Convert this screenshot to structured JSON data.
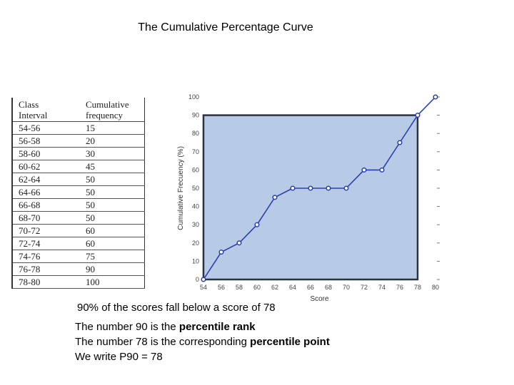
{
  "page_title": "The Cumulative Percentage Curve",
  "table": {
    "header": [
      "Class\nInterval",
      "Cumulative\nfrequency"
    ],
    "rows": [
      [
        "54-56",
        "15"
      ],
      [
        "56-58",
        "20"
      ],
      [
        "58-60",
        "30"
      ],
      [
        "60-62",
        "45"
      ],
      [
        "62-64",
        "50"
      ],
      [
        "64-66",
        "50"
      ],
      [
        "66-68",
        "50"
      ],
      [
        "68-70",
        "50"
      ],
      [
        "70-72",
        "60"
      ],
      [
        "72-74",
        "60"
      ],
      [
        "74-76",
        "75"
      ],
      [
        "76-78",
        "90"
      ],
      [
        "78-80",
        "100"
      ]
    ]
  },
  "chart_data": {
    "type": "line",
    "x": [
      54,
      56,
      58,
      60,
      62,
      64,
      66,
      68,
      70,
      72,
      74,
      76,
      78,
      80
    ],
    "series": [
      {
        "values": [
          0,
          15,
          20,
          30,
          45,
          50,
          50,
          50,
          50,
          60,
          60,
          75,
          90,
          100
        ]
      }
    ],
    "xlabel": "Score",
    "ylabel": "Cumulative Frecuency (%)",
    "xlim": [
      54,
      80
    ],
    "ylim": [
      0,
      100
    ],
    "xticks": [
      54,
      56,
      58,
      60,
      62,
      64,
      66,
      68,
      70,
      72,
      74,
      76,
      78,
      80
    ],
    "yticks": [
      0,
      10,
      20,
      30,
      40,
      50,
      60,
      70,
      80,
      90,
      100
    ],
    "highlight_region": {
      "x": [
        54,
        78
      ],
      "y": [
        0,
        90
      ]
    },
    "grid": false,
    "colors": {
      "line": "#2a3fb0",
      "region": "#b8cbe6",
      "region_border": "#2b3340",
      "marker_fill": "#ffffff"
    }
  },
  "notes": {
    "line1": "90% of the scores fall below a score of 78",
    "line2_pre": "The number 90 is the ",
    "line2_bold": "percentile rank",
    "line3_pre": "The number 78 is the corresponding ",
    "line3_bold": "percentile point",
    "line4": "We write P90 = 78"
  }
}
